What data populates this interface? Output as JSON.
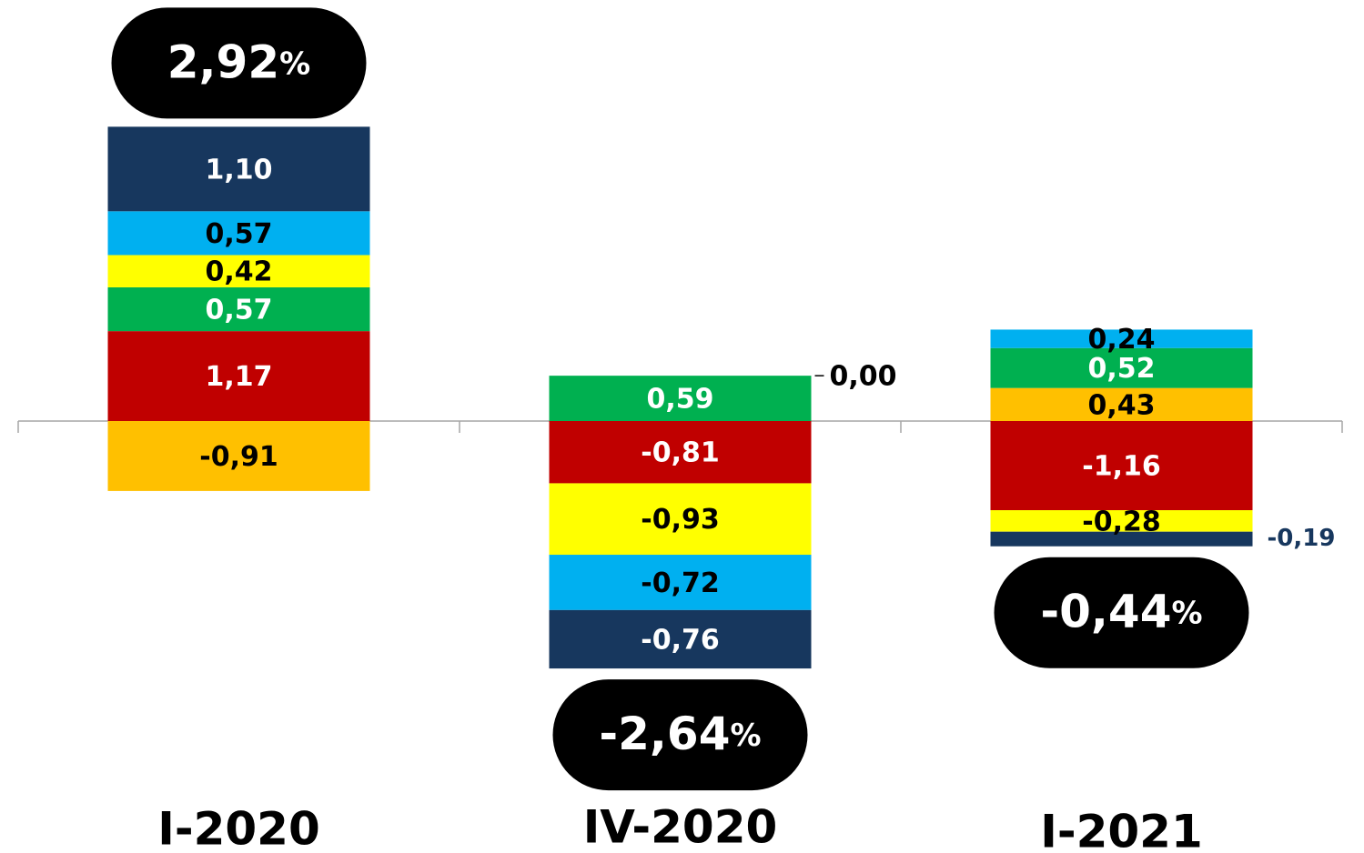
{
  "chart_data": {
    "type": "bar",
    "stacked": true,
    "categories": [
      "I-2020",
      "IV-2020",
      "I-2021"
    ],
    "totals": [
      {
        "value": 2.92,
        "label": "2,92",
        "suffix": "%"
      },
      {
        "value": -2.64,
        "label": "-2,64",
        "suffix": "%"
      },
      {
        "value": -0.44,
        "label": "-0,44",
        "suffix": "%"
      }
    ],
    "segments": [
      [
        {
          "value": -0.91,
          "label": "-0,91",
          "color": "#ffc000",
          "text_color": "#000000"
        },
        {
          "value": 1.17,
          "label": "1,17",
          "color": "#c00000",
          "text_color": "#ffffff"
        },
        {
          "value": 0.57,
          "label": "0,57",
          "color": "#00b050",
          "text_color": "#ffffff"
        },
        {
          "value": 0.42,
          "label": "0,42",
          "color": "#ffff00",
          "text_color": "#000000"
        },
        {
          "value": 0.57,
          "label": "0,57",
          "color": "#00b0f0",
          "text_color": "#000000"
        },
        {
          "value": 1.1,
          "label": "1,10",
          "color": "#17375e",
          "text_color": "#ffffff"
        }
      ],
      [
        {
          "value": 0.59,
          "label": "0,59",
          "color": "#00b050",
          "text_color": "#ffffff"
        },
        {
          "value": -0.81,
          "label": "-0,81",
          "color": "#c00000",
          "text_color": "#ffffff"
        },
        {
          "value": 0.0,
          "label": "0,00",
          "color": "#ffc000",
          "text_color": "#000000",
          "outside": true
        },
        {
          "value": -0.93,
          "label": "-0,93",
          "color": "#ffff00",
          "text_color": "#000000"
        },
        {
          "value": -0.72,
          "label": "-0,72",
          "color": "#00b0f0",
          "text_color": "#000000"
        },
        {
          "value": -0.76,
          "label": "-0,76",
          "color": "#17375e",
          "text_color": "#ffffff"
        }
      ],
      [
        {
          "value": 0.43,
          "label": "0,43",
          "color": "#ffc000",
          "text_color": "#000000"
        },
        {
          "value": -1.16,
          "label": "-1,16",
          "color": "#c00000",
          "text_color": "#ffffff"
        },
        {
          "value": 0.52,
          "label": "0,52",
          "color": "#00b050",
          "text_color": "#ffffff"
        },
        {
          "value": -0.28,
          "label": "-0,28",
          "color": "#ffff00",
          "text_color": "#000000"
        },
        {
          "value": 0.24,
          "label": "0,24",
          "color": "#00b0f0",
          "text_color": "#000000"
        },
        {
          "value": -0.19,
          "label": "-0,19",
          "color": "#17375e",
          "text_color": "#17375e",
          "outside": true
        }
      ]
    ],
    "bubble_color": "#000000",
    "axis_color": "#a6a6a6"
  }
}
